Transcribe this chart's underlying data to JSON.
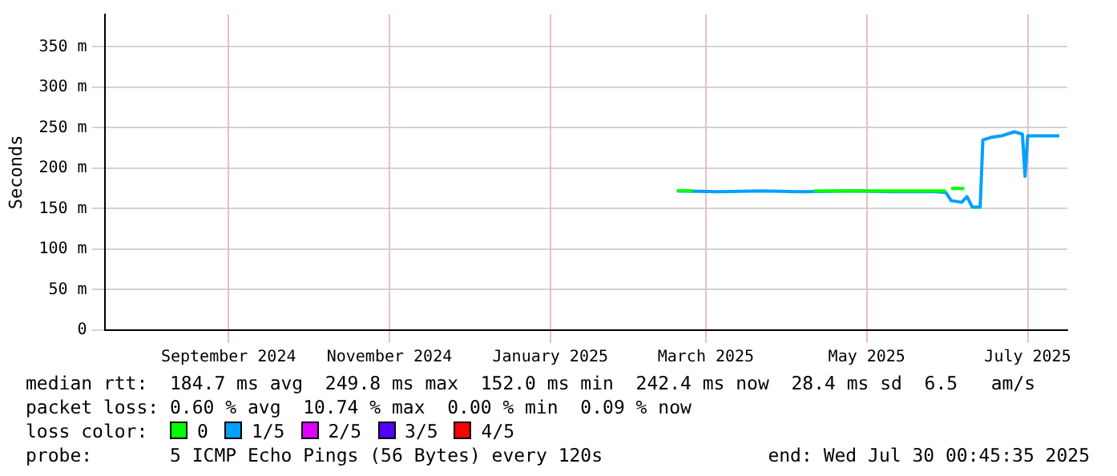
{
  "chart_data": {
    "type": "line",
    "ylabel": "Seconds",
    "legend_title": "loss color:",
    "legend": "bottom",
    "grid": true,
    "marker": "none",
    "line_style": "solid",
    "xlim": [
      "2024-07-30T00:45",
      "2025-07-30T00:45"
    ],
    "xticks": [
      {
        "value": "2024-09-15",
        "label": "September 2024"
      },
      {
        "value": "2024-11-15",
        "label": "November 2024"
      },
      {
        "value": "2025-01-15",
        "label": "January 2025"
      },
      {
        "value": "2025-03-15",
        "label": "March 2025"
      },
      {
        "value": "2025-05-15",
        "label": "May 2025"
      },
      {
        "value": "2025-07-15",
        "label": "July 2025"
      }
    ],
    "ylim": [
      0,
      390
    ],
    "yticks": [
      0,
      {
        "value": 50,
        "label": "50 m"
      },
      {
        "value": 100,
        "label": "100 m"
      },
      {
        "value": 150,
        "label": "150 m"
      },
      {
        "value": 200,
        "label": "200 m"
      },
      {
        "value": 250,
        "label": "250 m"
      },
      {
        "value": 300,
        "label": "300 m"
      },
      {
        "value": 350,
        "label": "350 m"
      }
    ],
    "series": [
      {
        "name": "0",
        "color": "#00ff00",
        "x": [
          "2025-03-04",
          "2025-03-10",
          "2025-03-11",
          "2025-04-25",
          "2025-06-14",
          "2025-06-15",
          "2025-06-16",
          "2025-06-21"
        ],
        "values": [
          172,
          172,
          null,
          172,
          172,
          null,
          175,
          175
        ]
      },
      {
        "name": "1/5",
        "color": "#00a0ff",
        "x": [
          "2025-03-04",
          "2025-03-20",
          "2025-04-05",
          "2025-04-20",
          "2025-05-10",
          "2025-05-25",
          "2025-06-10",
          "2025-06-14",
          "2025-06-16",
          "2025-06-20",
          "2025-06-22",
          "2025-06-24",
          "2025-06-27",
          "2025-06-28",
          "2025-07-01",
          "2025-07-05",
          "2025-07-10",
          "2025-07-13",
          "2025-07-14",
          "2025-07-15",
          "2025-07-20",
          "2025-07-27"
        ],
        "values": [
          172,
          171,
          172,
          171,
          172,
          171,
          171,
          170,
          160,
          158,
          165,
          152,
          152,
          235,
          238,
          240,
          245,
          242,
          190,
          240,
          240,
          240
        ]
      },
      {
        "name": "2/5",
        "color": "#dd00ff"
      },
      {
        "name": "3/5",
        "color": "#5500ff"
      },
      {
        "name": "4/5",
        "color": "#ff0000"
      }
    ],
    "annotations": [
      "median rtt:  184.7 ms avg  249.8 ms max  152.0 ms min  242.4 ms now  28.4 ms sd  6.5   am/s",
      "packet loss: 0.60 % avg  10.74 % max  0.00 % min  0.09 % now",
      "probe:       5 ICMP Echo Pings (56 Bytes) every 120s",
      "end: Wed Jul 30 00:45:35 2025"
    ]
  }
}
